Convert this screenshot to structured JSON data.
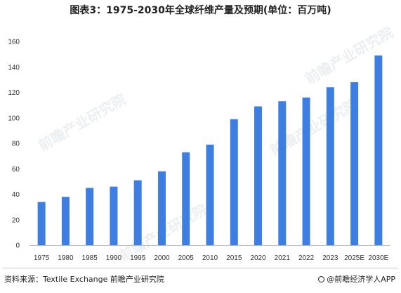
{
  "title": "图表3：1975-2030年全球纤维产量及预期(单位：百万吨)",
  "source": "资料来源：Textile Exchange 前瞻产业研究院",
  "brand": "@前瞻经济学人APP",
  "watermark": "前瞻产业研究院",
  "colors": {
    "bar": "#3d7ee0",
    "axis": "#bbbbbb"
  },
  "chart_data": {
    "type": "bar",
    "title": "图表3：1975-2030年全球纤维产量及预期(单位：百万吨)",
    "xlabel": "",
    "ylabel": "",
    "categories": [
      "1975",
      "1980",
      "1985",
      "1990",
      "1995",
      "2000",
      "2005",
      "2010",
      "2015",
      "2020",
      "2021",
      "2022",
      "2023",
      "2025E",
      "2030E"
    ],
    "values": [
      34,
      38,
      45,
      46,
      51,
      58,
      73,
      79,
      99,
      109,
      113,
      116,
      124,
      128,
      149
    ],
    "ylim": [
      0,
      160
    ],
    "yticks": [
      0,
      20,
      40,
      60,
      80,
      100,
      120,
      140,
      160
    ],
    "grid": false,
    "legend": "none"
  }
}
